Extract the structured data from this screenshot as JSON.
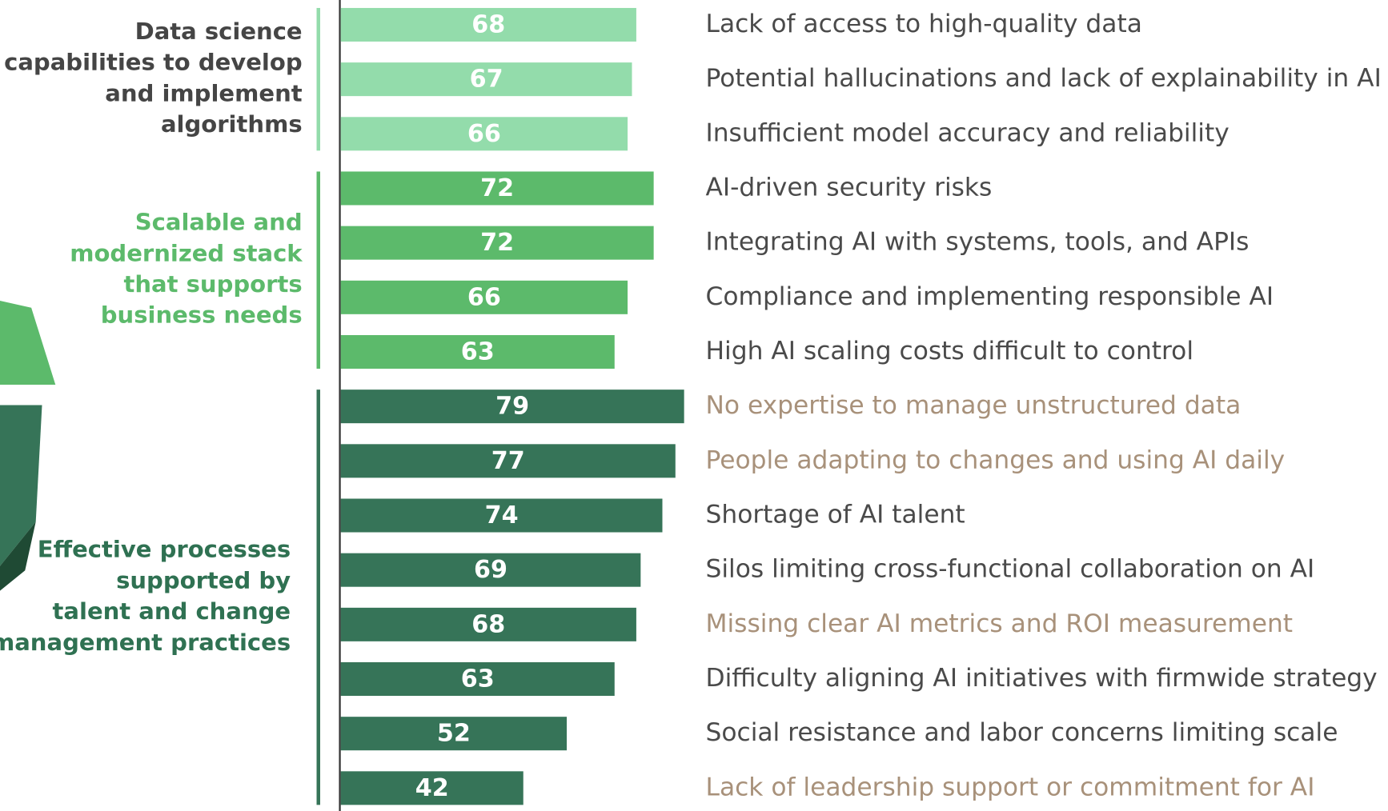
{
  "chart_data": {
    "type": "bar",
    "label_color": "#4a4a4a",
    "highlight_color": "#a8917a",
    "groups": [
      {
        "name": [
          "Data science",
          "capabilities to develop",
          "and implement",
          "algorithms"
        ],
        "name_color": "#454545",
        "color": "#93dcab",
        "categories": [
          "Lack of access to high-quality data",
          "Potential hallucinations and lack of explainability in AI",
          "Insufficient model accuracy and reliability"
        ],
        "values": [
          68,
          67,
          66
        ],
        "highlighted": [
          false,
          false,
          false
        ]
      },
      {
        "name": [
          "Scalable and",
          "modernized stack",
          "that supports",
          "business needs"
        ],
        "name_color": "#5cba6b",
        "color": "#5cba6b",
        "categories": [
          "AI-driven security risks",
          "Integrating AI with systems, tools, and APIs",
          "Compliance and implementing responsible AI",
          "High AI scaling costs difficult to control"
        ],
        "values": [
          72,
          72,
          66,
          63
        ],
        "highlighted": [
          false,
          false,
          false,
          false
        ]
      },
      {
        "name": [
          "Effective processes",
          "supported by",
          "talent and change",
          "management practices"
        ],
        "name_color": "#2f7152",
        "color": "#367458",
        "categories": [
          "No expertise to manage unstructured data",
          "People adapting to changes and using AI daily",
          "Shortage of AI talent",
          "Silos limiting cross-functional collaboration on AI",
          "Missing clear AI metrics and ROI measurement",
          "Difficulty aligning AI initiatives with firmwide strategy",
          "Social resistance and labor concerns limiting scale",
          "Lack of leadership support or commitment for AI"
        ],
        "values": [
          79,
          77,
          74,
          69,
          68,
          63,
          52,
          42
        ],
        "highlighted": [
          true,
          true,
          false,
          false,
          true,
          false,
          false,
          true
        ]
      }
    ]
  }
}
